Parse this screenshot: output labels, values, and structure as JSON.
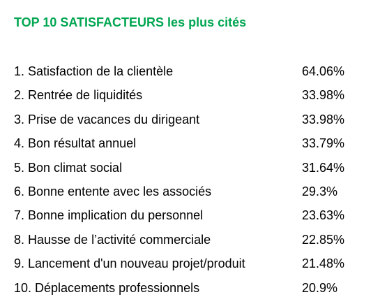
{
  "title": "TOP 10 SATISFACTEURS les plus cités",
  "table": {
    "rows": [
      [
        "1. Satisfaction de la clientèle",
        "64.06%"
      ],
      [
        "2. Rentrée de liquidités",
        "33.98%"
      ],
      [
        "3. Prise de vacances du dirigeant",
        "33.98%"
      ],
      [
        "4. Bon résultat annuel",
        "33.79%"
      ],
      [
        "5. Bon climat social",
        "31.64%"
      ],
      [
        "6. Bonne entente avec les associés",
        "29.3%"
      ],
      [
        "7. Bonne implication du personnel",
        "23.63%"
      ],
      [
        "8. Hausse de l’activité commerciale",
        "22.85%"
      ],
      [
        "9. Lancement d'un nouveau projet/produit",
        "21.48%"
      ],
      [
        "10. Déplacements professionnels",
        "20.9%"
      ]
    ]
  }
}
